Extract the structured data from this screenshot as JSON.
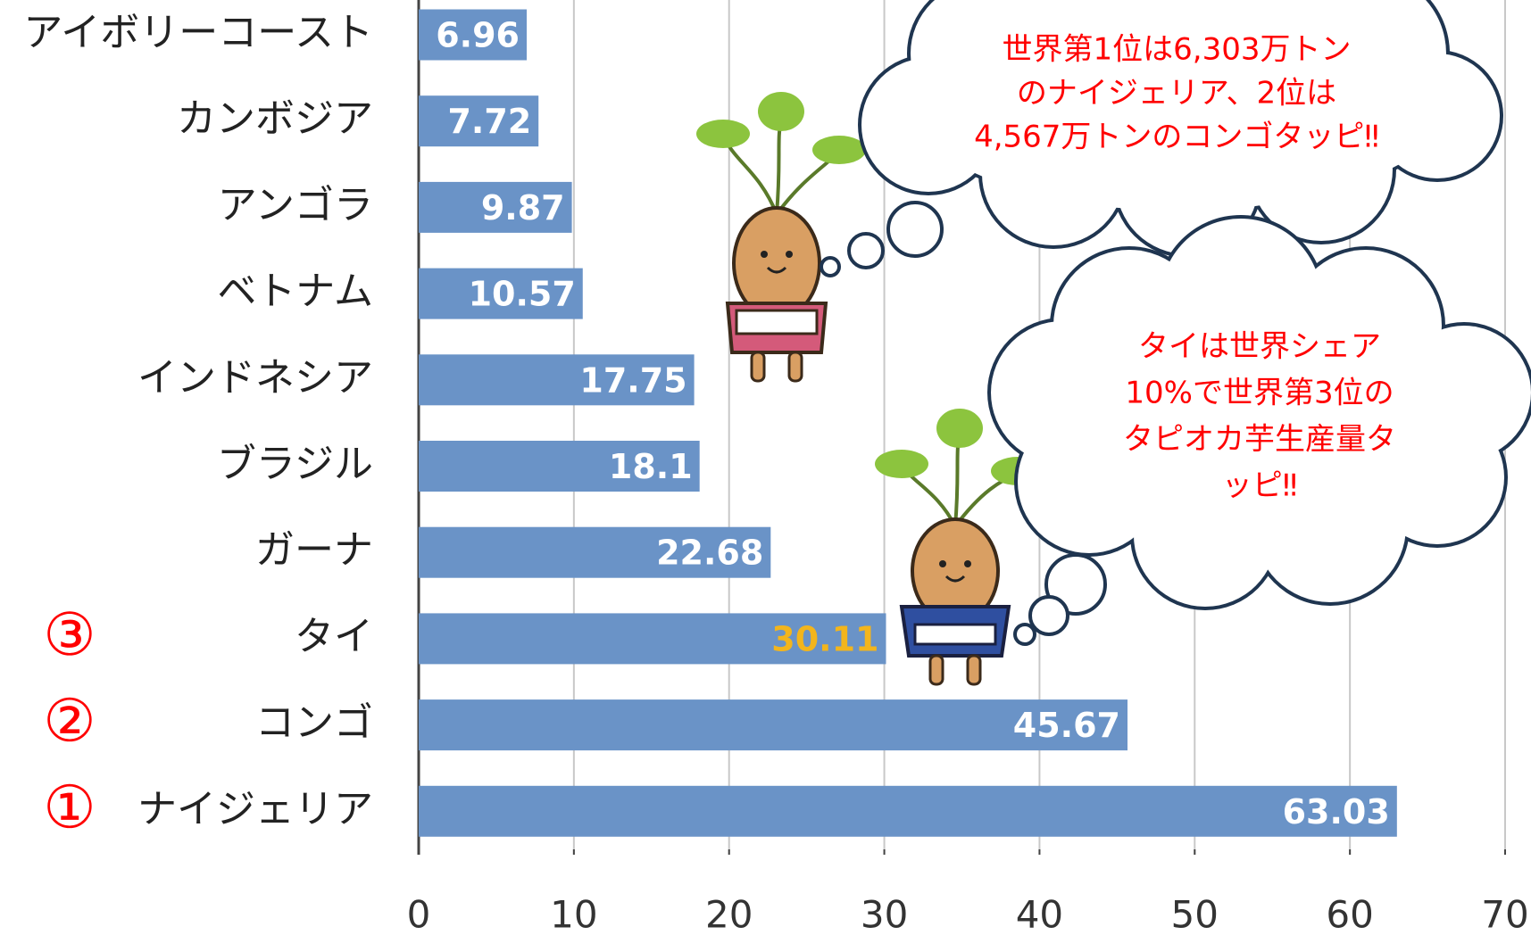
{
  "chart_data": {
    "type": "bar",
    "orientation": "horizontal",
    "categories": [
      "アイボリーコースト",
      "カンボジア",
      "アンゴラ",
      "ベトナム",
      "インドネシア",
      "ブラジル",
      "ガーナ",
      "タイ",
      "コンゴ",
      "ナイジェリア"
    ],
    "values": [
      6.96,
      7.72,
      9.87,
      10.57,
      17.75,
      18.1,
      22.68,
      30.11,
      45.67,
      63.03
    ],
    "color": "#6a93c7",
    "label_colors": [
      "#ffffff",
      "#ffffff",
      "#ffffff",
      "#ffffff",
      "#ffffff",
      "#ffffff",
      "#ffffff",
      "#f3b51c",
      "#ffffff",
      "#ffffff"
    ],
    "rank_labels": [
      null,
      null,
      null,
      null,
      null,
      null,
      null,
      "③",
      "②",
      "①"
    ],
    "rank_color": "#ff0000",
    "xlim": [
      0,
      70
    ],
    "xticks": [
      0,
      10,
      20,
      30,
      40,
      50,
      60,
      70
    ],
    "grid": true,
    "annotations": [
      [
        "世界第1位は6,303万トン",
        "のナイジェリア、2位は",
        "4,567万トンのコンゴタッピ‼"
      ],
      [
        "タイは世界シェア",
        "10%で世界第3位の",
        "タピオカ芋生産量タ",
        "ッピ‼"
      ]
    ],
    "annotation_color": "#ff0000"
  }
}
